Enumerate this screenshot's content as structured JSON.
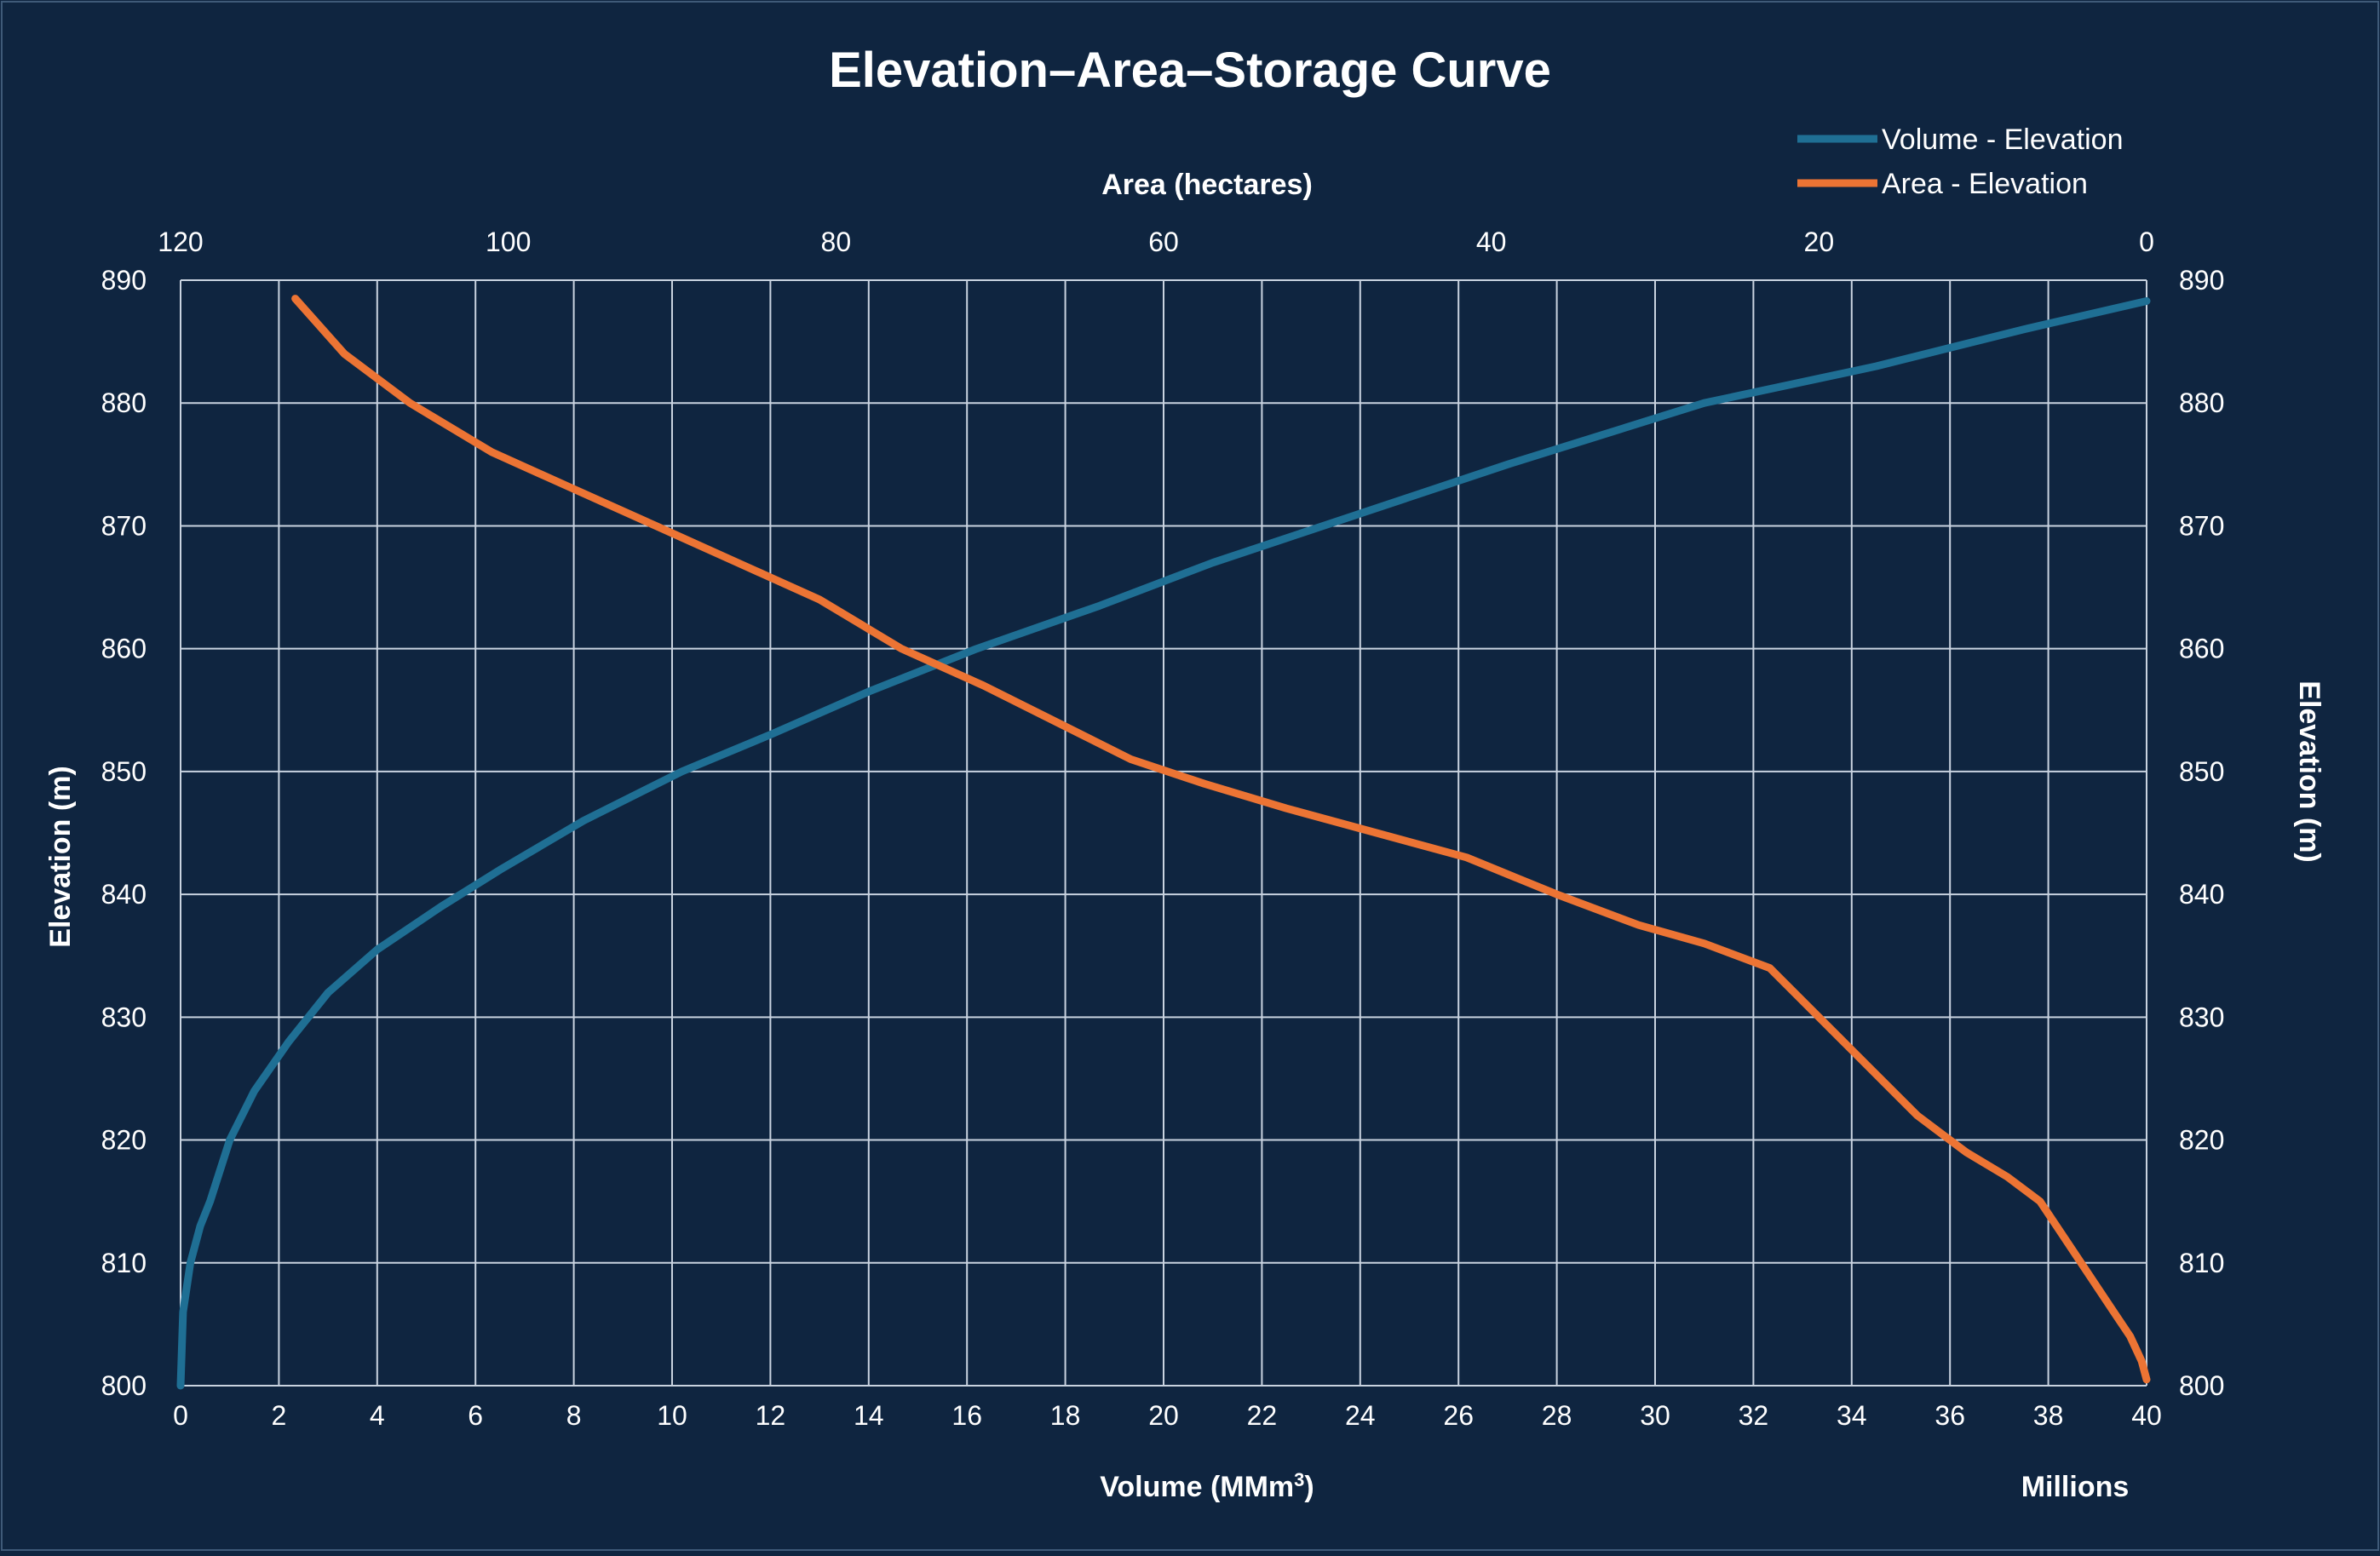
{
  "chart_data": {
    "type": "line",
    "title": "Elevation–Area–Storage Curve",
    "xlabel_bottom": "Volume (MMm",
    "xlabel_bottom_sup": "3",
    "xlabel_bottom_close": ")",
    "xlabel_bottom_unit": "Millions",
    "xlabel_top": "Area (hectares)",
    "ylabel_left": "Elevation (m)",
    "ylabel_right": "Elevation (m)",
    "xlim_bottom": [
      0,
      40
    ],
    "xlim_top": [
      120,
      0
    ],
    "ylim": [
      800,
      890
    ],
    "xticks_bottom": [
      "0",
      "2",
      "4",
      "6",
      "8",
      "10",
      "12",
      "14",
      "16",
      "18",
      "20",
      "22",
      "24",
      "26",
      "28",
      "30",
      "32",
      "34",
      "36",
      "38",
      "40"
    ],
    "xticks_top": [
      "120",
      "100",
      "80",
      "60",
      "40",
      "20",
      "0"
    ],
    "yticks": [
      "800",
      "810",
      "820",
      "830",
      "840",
      "850",
      "860",
      "870",
      "880",
      "890"
    ],
    "grid": true,
    "legend_position": "top-right",
    "colors": {
      "background": "#0f2540",
      "grid": "#c9d3e0",
      "volume": "#1f6f94",
      "area": "#ec7434"
    },
    "series": [
      {
        "name": "Volume - Elevation",
        "axis": "bottom",
        "x": [
          0,
          0.05,
          0.2,
          0.4,
          0.6,
          1.0,
          1.5,
          2.2,
          3.0,
          4.0,
          5.3,
          6.5,
          8.2,
          10.2,
          12.0,
          14.0,
          16.2,
          18.7,
          21.0,
          24.0,
          27.0,
          31.0,
          34.5,
          37.5,
          40.0
        ],
        "y": [
          800,
          806,
          810,
          813,
          815,
          820,
          824,
          828,
          832,
          835.5,
          839,
          842,
          846,
          850,
          853,
          856.5,
          860,
          863.5,
          867,
          871,
          875,
          880,
          883,
          886,
          888.3
        ]
      },
      {
        "name": "Area - Elevation",
        "axis": "top",
        "x": [
          0,
          0.3,
          1.0,
          2.0,
          3.5,
          5.0,
          6.5,
          8.5,
          11.0,
          14.0,
          17.0,
          20.0,
          23.0,
          27.0,
          31.0,
          36.0,
          41.5,
          47.0,
          52.5,
          57.5,
          62.0,
          66.5,
          71.0,
          76.0,
          81.0,
          86.0,
          91.0,
          96.0,
          101.0,
          106.0,
          110.0,
          113.0
        ],
        "y": [
          800.5,
          802,
          804,
          806,
          809,
          812,
          815,
          817,
          819,
          822,
          826,
          830,
          834,
          836,
          837.5,
          840,
          843,
          845,
          847,
          849,
          851,
          854,
          857,
          860,
          864,
          867,
          870,
          873,
          876,
          880,
          884,
          888.5
        ]
      }
    ]
  }
}
